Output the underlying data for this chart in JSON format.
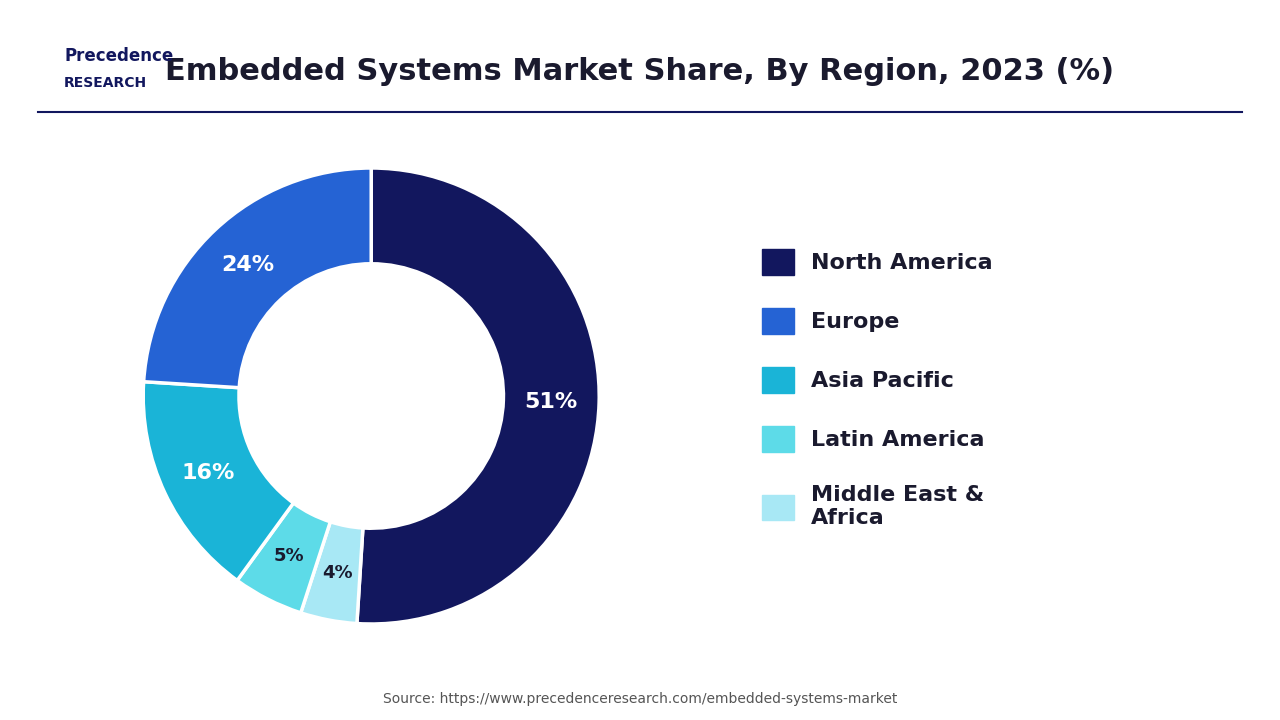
{
  "title": "Embedded Systems Market Share, By Region, 2023 (%)",
  "plot_sizes": [
    51,
    4,
    5,
    16,
    24
  ],
  "plot_colors": [
    "#12175e",
    "#a8e8f5",
    "#5ddbe8",
    "#1ab4d7",
    "#2563d4"
  ],
  "plot_pcts": [
    "51%",
    "4%",
    "5%",
    "16%",
    "24%"
  ],
  "pct_text_colors": [
    "white",
    "#1a1a2e",
    "#1a1a2e",
    "white",
    "white"
  ],
  "legend_labels": [
    "North America",
    "Europe",
    "Asia Pacific",
    "Latin America",
    "Middle East &\nAfrica"
  ],
  "legend_colors": [
    "#12175e",
    "#2563d4",
    "#1ab4d7",
    "#5ddbe8",
    "#a8e8f5"
  ],
  "source_text": "Source: https://www.precedenceresearch.com/embedded-systems-market",
  "title_fontsize": 22,
  "pct_fontsize": 16,
  "legend_fontsize": 16,
  "background_color": "#ffffff",
  "logo_line1": "Precedence",
  "logo_line2": "RESEARCH",
  "header_line_color": "#12175e",
  "donut_width": 0.42
}
